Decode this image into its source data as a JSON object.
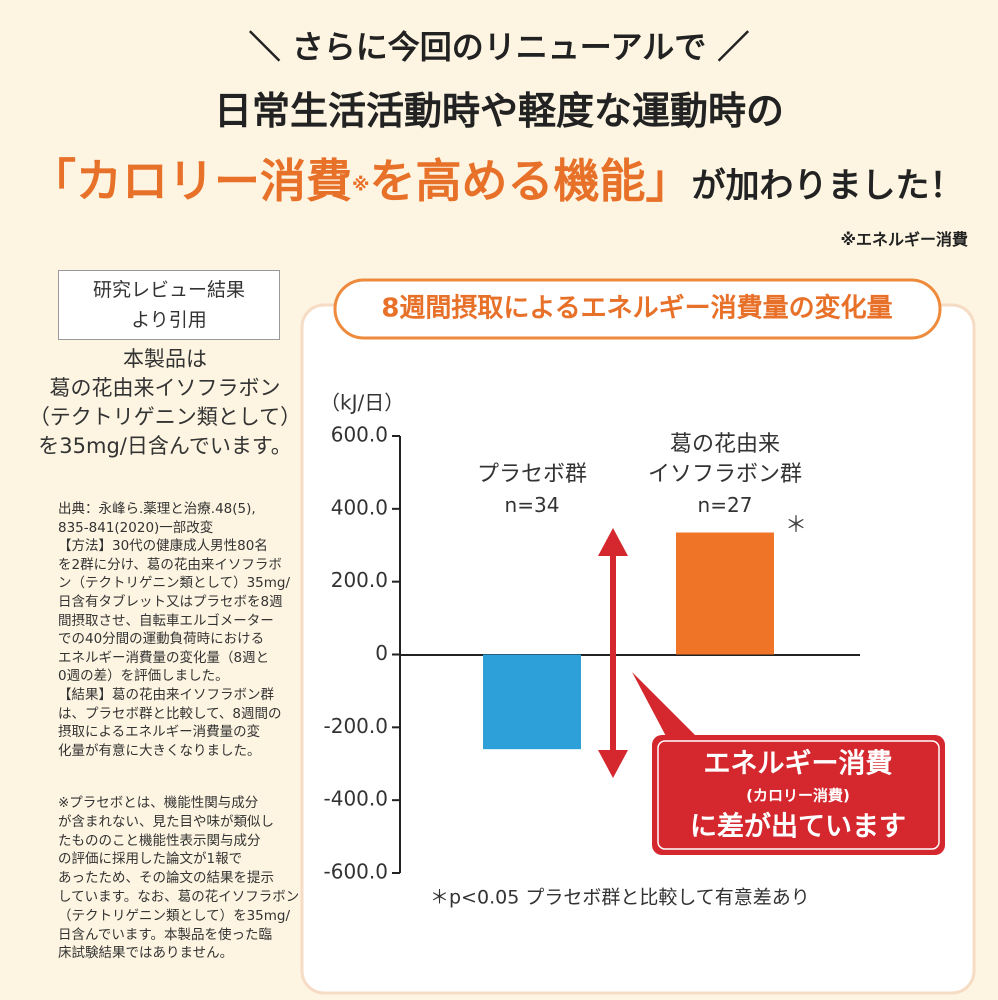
{
  "header": {
    "line1": "＼ さらに今回のリニューアルで ／",
    "line2": "日常生活活動時や軽度な運動時の",
    "highlight1": "「カロリー消費",
    "highlight_mark": "※",
    "highlight2": "を高める機能」",
    "line3_tail": "が加わりました！",
    "note": "※エネルギー消費"
  },
  "sidebar": {
    "box": "研究レビュー結果\nより引用",
    "product": "本製品は\n葛の花由来イソフラボン\n（テクトリゲニン類として）\nを35mg/日含んでいます。",
    "source": "出典：永峰ら.薬理と治療.48(5),\n835-841(2020)一部改変\n【方法】30代の健康成人男性80名\nを2群に分け、葛の花由来イソフラボ\nン（テクトリゲニン類として）35mg/\n日含有タブレット又はプラセボを8週\n間摂取させ、自転車エルゴメーター\nでの40分間の運動負荷時における\nエネルギー消費量の変化量（8週と\n0週の差）を評価しました。\n【結果】葛の花由来イソフラボン群\nは、プラセボ群と比較して、8週間の\n摂取によるエネルギー消費量の変\n化量が有意に大きくなりました。",
    "note": "※プラセボとは、機能性関与成分\nが含まれない、見た目や味が類似し\nたもののこと機能性表示関与成分\nの評価に採用した論文が1報で\nあったため、その論文の結果を提示\nしています。なお、葛の花イソフラボン\n（テクトリゲニン類として）を35mg/\n日含んでいます。本製品を使った臨\n床試験結果ではありません。"
  },
  "chart_data": {
    "type": "bar",
    "title": "8週間摂取によるエネルギー消費量の変化量",
    "y_label": "（kJ/日）",
    "categories": [
      "プラセボ群",
      "葛の花由来\nイソフラボン群"
    ],
    "sample_sizes": [
      "n=34",
      "n=27"
    ],
    "values": [
      -260,
      335
    ],
    "colors": [
      "#2ea0d9",
      "#f07427"
    ],
    "ylim": [
      -600,
      600
    ],
    "yticks": [
      {
        "value": -600,
        "label": "-600.0"
      },
      {
        "value": -400,
        "label": "-400.0"
      },
      {
        "value": -200,
        "label": "-200.0"
      },
      0,
      {
        "value": 200,
        "label": "200.0"
      },
      {
        "value": 400,
        "label": "400.0"
      },
      {
        "value": 600,
        "label": "600.0"
      }
    ],
    "significance_mark": "＊",
    "footnote": "＊p<0.05 プラセボ群と比較して有意差あり",
    "callout": {
      "line1": "エネルギー消費",
      "line2": "(カロリー消費)",
      "line3": "に差が出ています"
    }
  }
}
